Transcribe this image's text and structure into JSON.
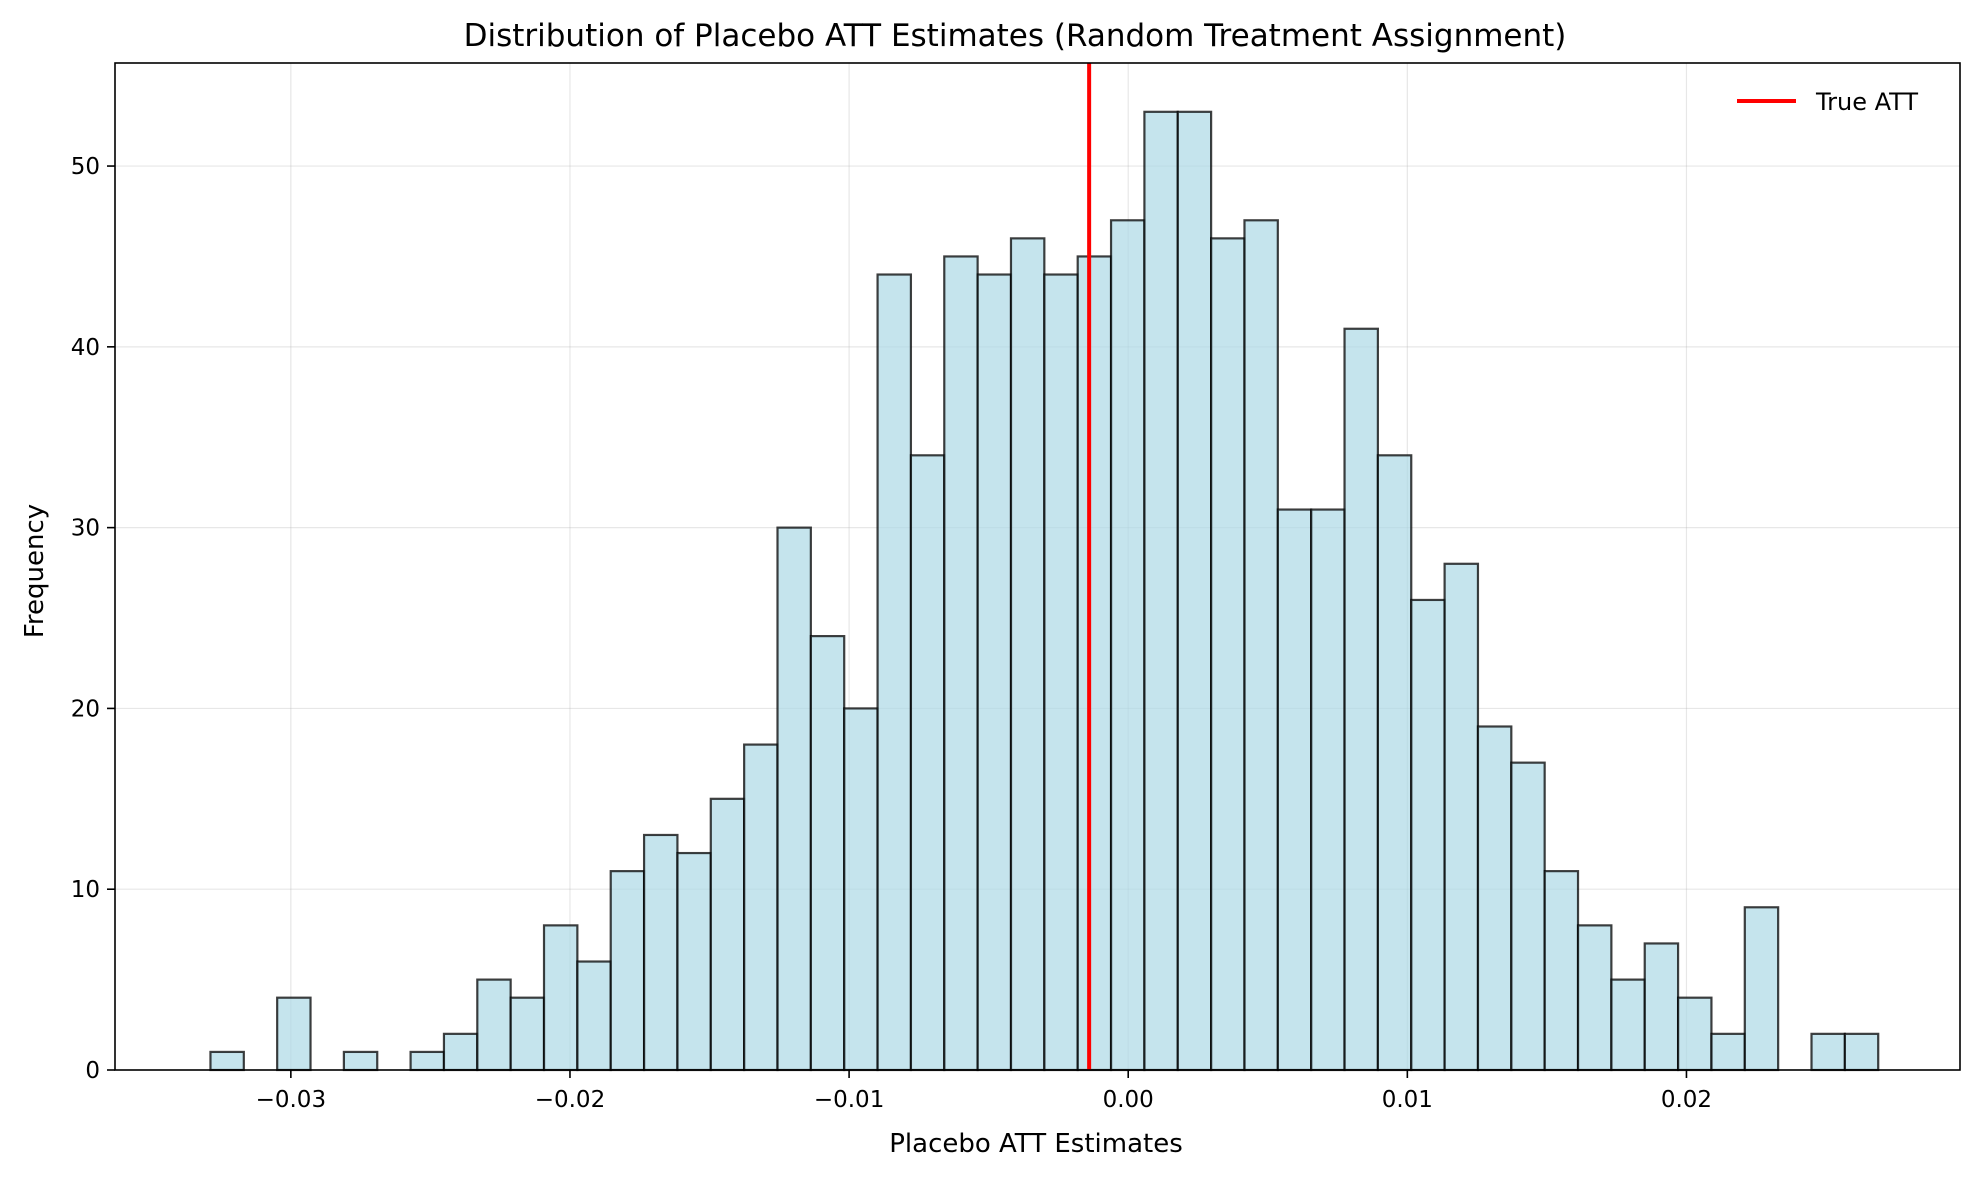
{
  "chart_data": {
    "type": "bar",
    "subtype": "histogram",
    "title": "Distribution of Placebo ATT Estimates (Random Treatment Assignment)",
    "xlabel": "Placebo ATT Estimates",
    "ylabel": "Frequency",
    "xlim": [
      -0.0363,
      0.0298
    ],
    "ylim": [
      0,
      55.7
    ],
    "x_ticks": [
      -0.03,
      -0.02,
      -0.01,
      0.0,
      0.01,
      0.02
    ],
    "x_tick_labels": [
      "−0.03",
      "−0.02",
      "−0.01",
      "0.00",
      "0.01",
      "0.02"
    ],
    "y_ticks": [
      0,
      10,
      20,
      30,
      40,
      50
    ],
    "y_tick_labels": [
      "0",
      "10",
      "20",
      "30",
      "40",
      "50"
    ],
    "grid": true,
    "legend_position": "upper right",
    "bin_start": -0.03288,
    "bin_width": 0.001195,
    "counts": [
      1,
      0,
      4,
      0,
      1,
      0,
      1,
      2,
      5,
      4,
      8,
      6,
      11,
      13,
      12,
      15,
      18,
      30,
      24,
      20,
      44,
      34,
      45,
      44,
      46,
      44,
      45,
      47,
      53,
      53,
      46,
      47,
      31,
      31,
      41,
      34,
      26,
      28,
      19,
      17,
      11,
      8,
      5,
      7,
      4,
      2,
      9,
      0,
      2,
      2
    ],
    "bar_fill": "#add8e6",
    "bar_fill_opacity": 0.7,
    "bar_edge": "#000000",
    "reference_line": {
      "name": "True ATT",
      "x": -0.0014,
      "color": "#ff0000"
    }
  }
}
